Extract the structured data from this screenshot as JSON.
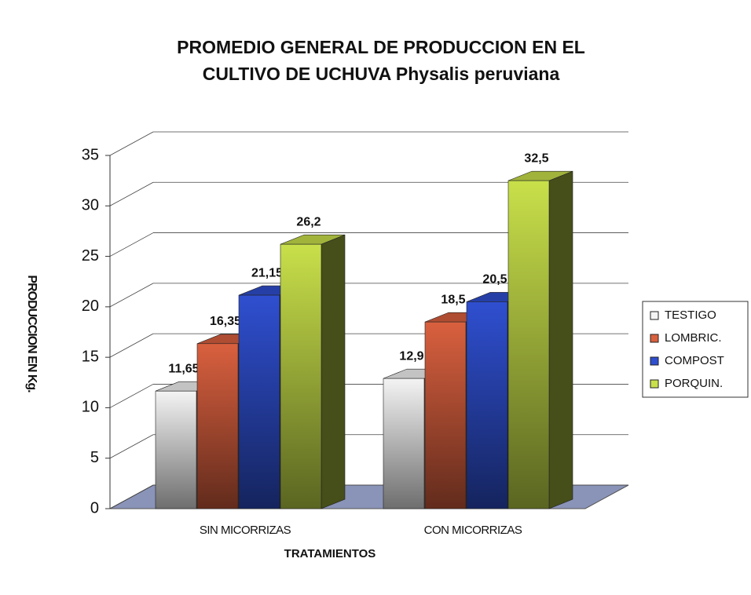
{
  "chart_data": {
    "type": "bar3d",
    "title": [
      "PROMEDIO GENERAL DE PRODUCCION  EN EL",
      "CULTIVO DE UCHUVA Physalis peruviana"
    ],
    "x_label": "TRATAMIENTOS",
    "y_label": "PRODUCCION EN Kg.",
    "categories": [
      "SIN MICORRIZAS",
      "CON MICORRIZAS"
    ],
    "series": [
      {
        "name": "TESTIGO",
        "color": "#f4f4f4",
        "values": [
          11.65,
          12.9
        ],
        "value_labels": [
          "11,65",
          "12,9"
        ]
      },
      {
        "name": "LOMBRIC.",
        "color": "#d9603f",
        "values": [
          16.35,
          18.5
        ],
        "value_labels": [
          "16,35",
          "18,5"
        ]
      },
      {
        "name": "COMPOST",
        "color": "#2f4fd0",
        "values": [
          21.15,
          20.5
        ],
        "value_labels": [
          "21,15",
          "20,5"
        ]
      },
      {
        "name": "PORQUIN.",
        "color": "#c9e04a",
        "values": [
          26.2,
          32.5
        ],
        "value_labels": [
          "26,2",
          "32,5"
        ]
      }
    ],
    "ylim": [
      0,
      35
    ],
    "yticks": [
      0,
      5,
      10,
      15,
      20,
      25,
      30,
      35
    ],
    "grid": true,
    "legend": "right"
  }
}
